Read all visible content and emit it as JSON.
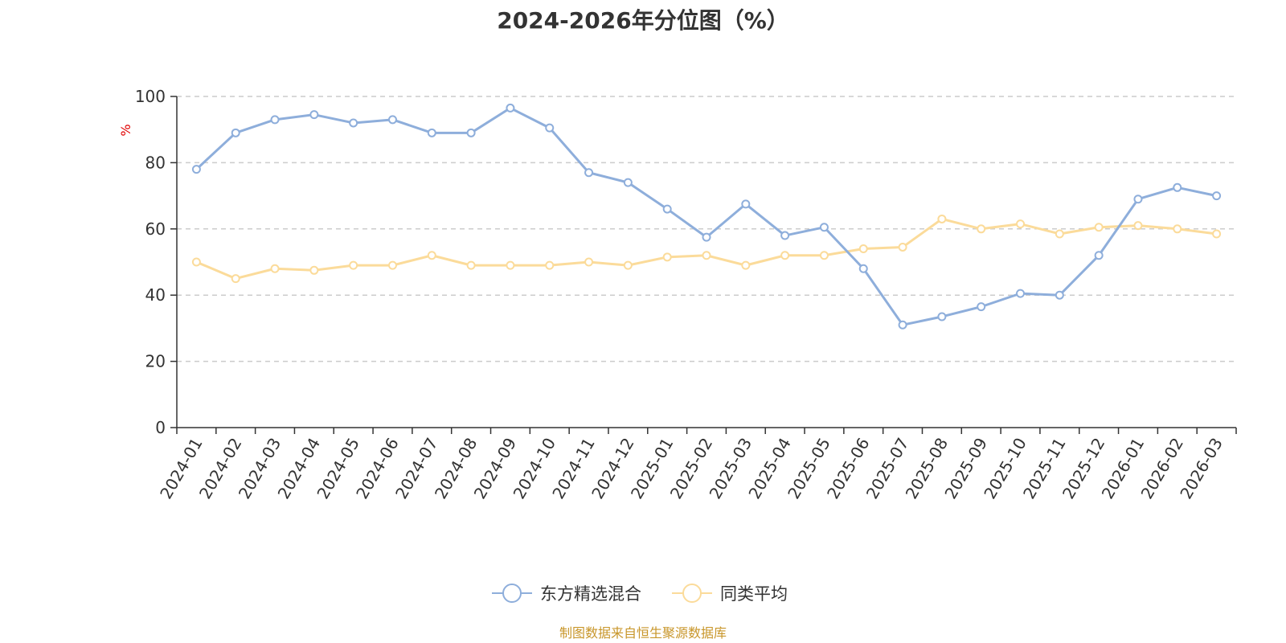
{
  "chart_data": {
    "type": "line",
    "title": "2024-2026年分位图（%）",
    "ylabel": "%",
    "xlabel": "",
    "ylim": [
      0,
      100
    ],
    "yticks": [
      0,
      20,
      40,
      60,
      80,
      100
    ],
    "grid": true,
    "legend_position": "bottom",
    "categories": [
      "2024-01",
      "2024-02",
      "2024-03",
      "2024-04",
      "2024-05",
      "2024-06",
      "2024-07",
      "2024-08",
      "2024-09",
      "2024-10",
      "2024-11",
      "2024-12",
      "2025-01",
      "2025-02",
      "2025-03",
      "2025-04",
      "2025-05",
      "2025-06",
      "2025-07",
      "2025-08",
      "2025-09",
      "2025-10",
      "2025-11",
      "2025-12",
      "2026-01",
      "2026-02",
      "2026-03"
    ],
    "series": [
      {
        "name": "东方精选混合",
        "color": "#8eaedb",
        "values": [
          78,
          89,
          93,
          94.5,
          92,
          93,
          89,
          89,
          96.5,
          90.5,
          77,
          74,
          66,
          57.5,
          67.5,
          58,
          60.5,
          48,
          31,
          33.5,
          36.5,
          40.5,
          40,
          52,
          69,
          72.5,
          70
        ]
      },
      {
        "name": "同类平均",
        "color": "#fbdb9a",
        "values": [
          50,
          45,
          48,
          47.5,
          49,
          49,
          52,
          49,
          49,
          49,
          50,
          49,
          51.5,
          52,
          49,
          52,
          52,
          54,
          54.5,
          63,
          60,
          61.5,
          58.5,
          60.5,
          61,
          60,
          58.5
        ]
      }
    ]
  },
  "source": "制图数据来自恒生聚源数据库"
}
